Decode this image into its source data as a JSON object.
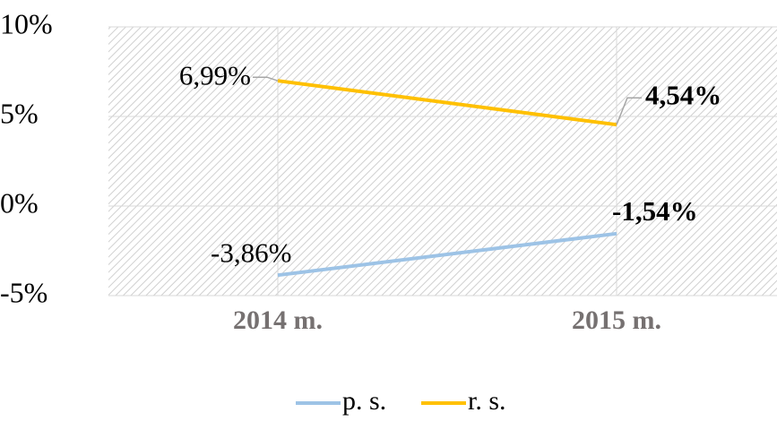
{
  "chart_data": {
    "type": "line",
    "categories": [
      "2014 m.",
      "2015 m."
    ],
    "series": [
      {
        "name": "p. s.",
        "color": "#9dc3e6",
        "values": [
          -3.86,
          -1.54
        ],
        "value_labels": [
          "-3,86%",
          "-1,54%"
        ]
      },
      {
        "name": "r. s.",
        "color": "#ffc000",
        "values": [
          6.99,
          4.54
        ],
        "value_labels": [
          "6,99%",
          "4,54%"
        ]
      }
    ],
    "ylim": [
      -5,
      10
    ],
    "yticks": [
      {
        "value": -5,
        "label": "-5%"
      },
      {
        "value": 0,
        "label": "0%"
      },
      {
        "value": 5,
        "label": "5%"
      },
      {
        "value": 10,
        "label": "10%"
      }
    ],
    "grid": true,
    "legend": "bottom"
  }
}
